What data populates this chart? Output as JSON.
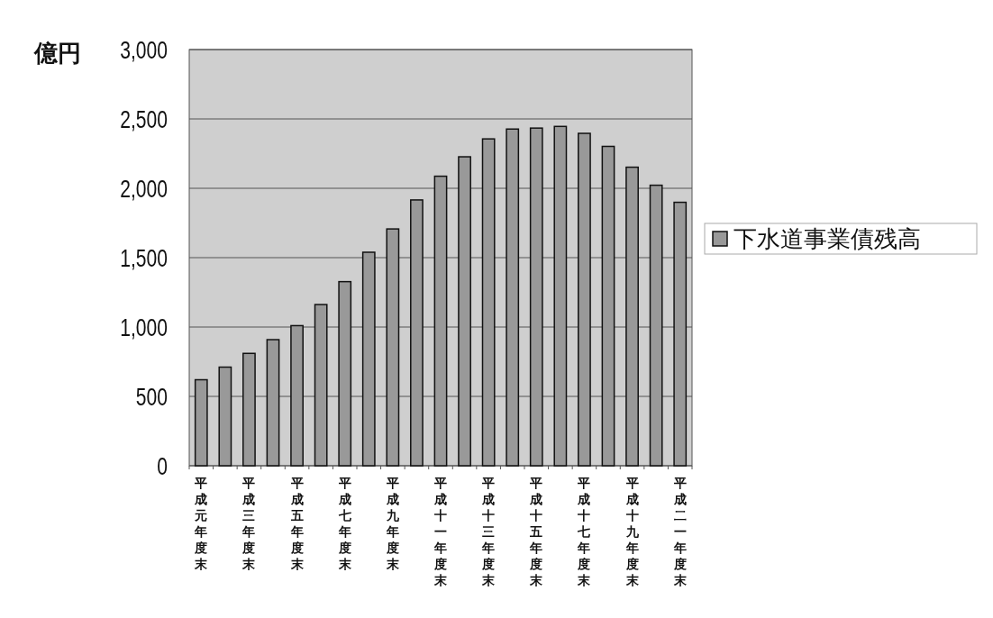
{
  "chart_data": {
    "type": "bar",
    "ylabel": "億円",
    "categories": [
      "平成元年度末",
      null,
      "平成三年度末",
      null,
      "平成五年度末",
      null,
      "平成七年度末",
      null,
      "平成九年度末",
      null,
      "平成十一年度末",
      null,
      "平成十三年度末",
      null,
      "平成十五年度末",
      null,
      "平成十七年度末",
      null,
      "平成十九年度末",
      null,
      "平成二一年度末"
    ],
    "series": [
      {
        "name": "下水道事業債残高",
        "color": "#999999",
        "values": [
          620,
          711,
          810,
          909,
          1010,
          1162,
          1327,
          1539,
          1707,
          1916,
          2087,
          2227,
          2356,
          2427,
          2434,
          2446,
          2396,
          2302,
          2152,
          2022,
          1899
        ]
      }
    ],
    "ylim": [
      0,
      3000
    ],
    "yticks": [
      0,
      500,
      {
        "value": 1000,
        "label": "1,000"
      },
      {
        "value": 1500,
        "label": "1,500"
      },
      {
        "value": 2000,
        "label": "2,000"
      },
      {
        "value": 2500,
        "label": "2,500"
      },
      {
        "value": 3000,
        "label": "3,000"
      }
    ],
    "grid": "y",
    "legend": "right"
  }
}
